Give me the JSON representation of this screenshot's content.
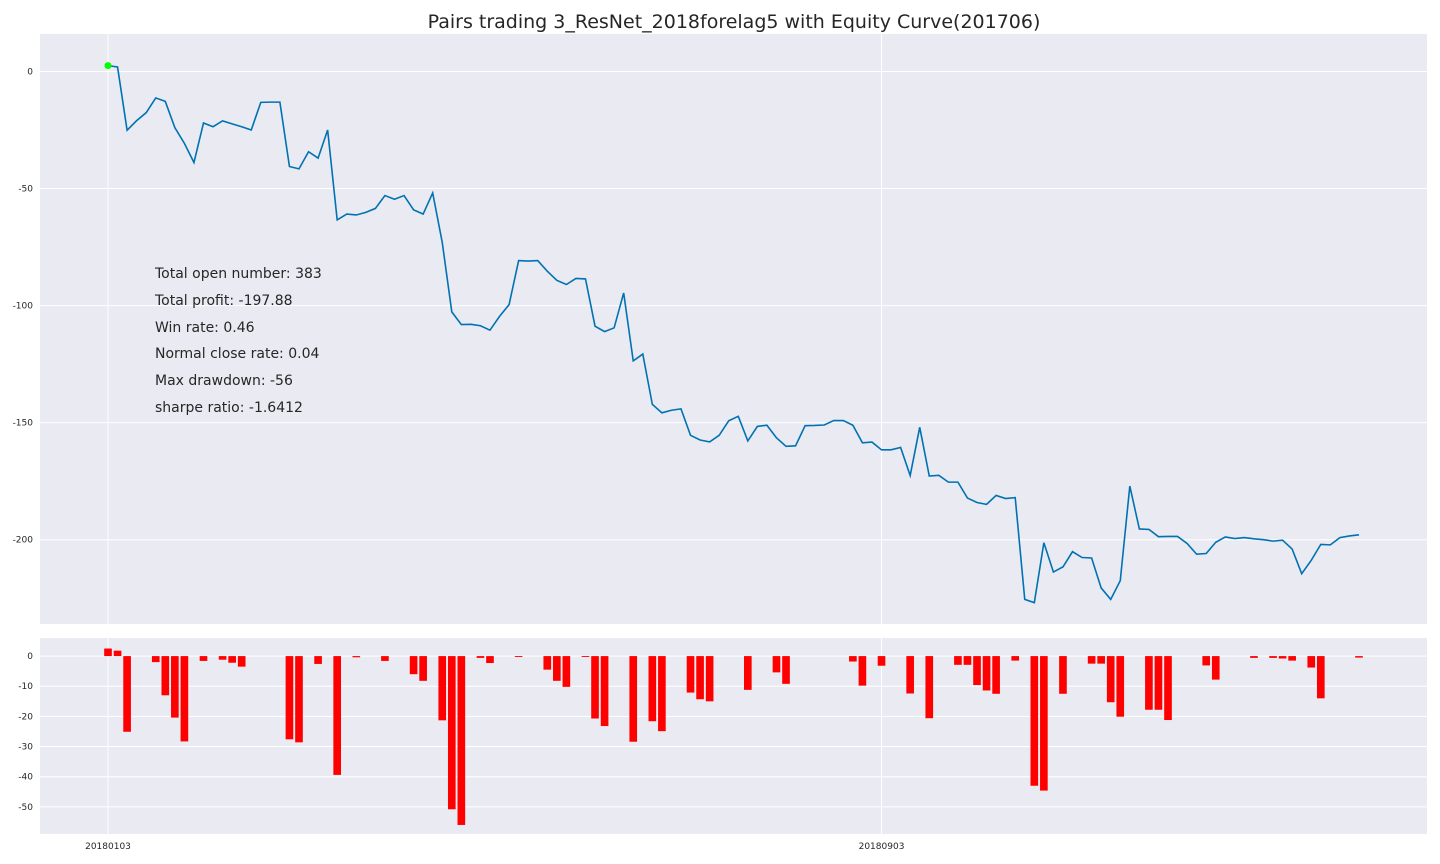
{
  "chart_data": [
    {
      "type": "line",
      "title": "Pairs trading 3_ResNet_2018forelag5 with Equity Curve(201706)",
      "x_ticks": [
        "20180103",
        "20180903"
      ],
      "y_ticks": [
        "0",
        "-50",
        "-100",
        "-150",
        "-200"
      ],
      "ylim": [
        -236,
        16
      ],
      "grid": true,
      "line_color": "#0072b2",
      "start_marker_color": "#00ff00",
      "series": [
        {
          "values": [
            2.5,
            1.9,
            -25.1,
            -21,
            -17.6,
            -11.3,
            -12.8,
            -24,
            -30.7,
            -38.9,
            -22,
            -23.6,
            -21.1,
            -22.4,
            -23.6,
            -25,
            -13.2,
            -13.1,
            -13.1,
            -40.6,
            -41.6,
            -34.3,
            -37,
            -25,
            -63.4,
            -60.9,
            -61.3,
            -60.2,
            -58.5,
            -53,
            -54.6,
            -53,
            -59.1,
            -60.9,
            -51.9,
            -73,
            -102.7,
            -108.1,
            -108,
            -108.6,
            -110.5,
            -104.6,
            -99.6,
            -80.8,
            -81,
            -80.8,
            -85.3,
            -89.2,
            -91,
            -88.4,
            -88.6,
            -108.8,
            -111.1,
            -109.5,
            -94.6,
            -123.6,
            -120.7,
            -142.2,
            -145.8,
            -144.7,
            -144.1,
            -155.4,
            -157.4,
            -158.2,
            -155.4,
            -149.2,
            -147.3,
            -157.8,
            -151.6,
            -151.1,
            -156.5,
            -160.1,
            -159.9,
            -151.3,
            -151.2,
            -151,
            -149.1,
            -149.1,
            -151.1,
            -158.6,
            -158.3,
            -161.6,
            -161.6,
            -160.6,
            -172.6,
            -152,
            -172.8,
            -172.5,
            -175.4,
            -175.4,
            -182.2,
            -184.1,
            -184.9,
            -181.1,
            -182.4,
            -182,
            -225.5,
            -226.9,
            -201.3,
            -213.8,
            -211.6,
            -205.1,
            -207.6,
            -207.8,
            -220.6,
            -225.5,
            -217.5,
            -177.1,
            -195.4,
            -195.6,
            -198.7,
            -198.6,
            -198.6,
            -201.6,
            -206.2,
            -205.9,
            -201.1,
            -198.8,
            -199.5,
            -199.1,
            -199.6,
            -200,
            -200.6,
            -200.2,
            -204,
            -214.5,
            -208.8,
            -202,
            -202.2,
            -199.1,
            -198.4,
            -197.9
          ]
        }
      ],
      "annotations": [
        "Total open number: 383",
        "Total profit: -197.88",
        "Win rate: 0.46",
        "Normal close rate: 0.04",
        "Max drawdown: -56",
        "sharpe ratio: -1.6412"
      ]
    },
    {
      "type": "bar",
      "y_ticks": [
        "0",
        "-10",
        "-20",
        "-30",
        "-40",
        "-50"
      ],
      "ylim": [
        -59,
        6
      ],
      "grid": true,
      "bar_color": "#ff0000",
      "series": [
        {
          "values": [
            2.5,
            1.8,
            -25.1,
            0,
            0,
            -2,
            -13,
            -20.4,
            -28.3,
            0,
            -1.6,
            0,
            -1.2,
            -2.2,
            -3.5,
            0,
            0,
            0,
            0,
            -27.6,
            -28.6,
            0,
            -2.6,
            0,
            -39.4,
            0,
            -0.4,
            0,
            0,
            -1.6,
            0,
            0,
            -6,
            -8.2,
            0,
            -21.3,
            -50.8,
            -56,
            0,
            -0.6,
            -2.3,
            0,
            0,
            -0.3,
            0,
            0,
            -4.5,
            -8.2,
            -10.2,
            0,
            -0.3,
            -20.7,
            -23.2,
            0,
            0,
            -28.4,
            0,
            -21.6,
            -24.9,
            0,
            0,
            -12.1,
            -14.3,
            -15,
            0,
            0,
            0,
            -11.2,
            0,
            0,
            -5.4,
            -9.2,
            0,
            0,
            0,
            0,
            0,
            0,
            -1.8,
            -9.8,
            0,
            -3.2,
            0,
            0,
            -12.4,
            0,
            -20.6,
            0,
            0,
            -2.9,
            -2.9,
            -9.6,
            -11.4,
            -12.5,
            0,
            -1.5,
            0,
            -43,
            -44.6,
            0,
            -12.5,
            0,
            0,
            -2.5,
            -2.5,
            -15.3,
            -20.1,
            0,
            0,
            -17.8,
            -17.8,
            -21.2,
            0,
            0,
            0,
            -3.1,
            -7.8,
            0,
            0,
            0,
            -0.6,
            0,
            -0.6,
            -0.8,
            -1.5,
            0,
            -3.8,
            -14,
            0,
            0,
            0,
            -0.5,
            0
          ]
        }
      ],
      "x_ticks": [
        "20180103",
        "20180903"
      ]
    }
  ]
}
